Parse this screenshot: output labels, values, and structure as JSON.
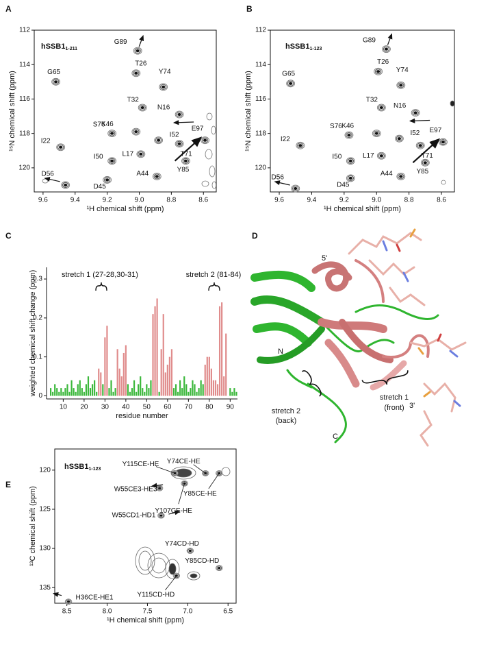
{
  "chart_data": [
    {
      "type": "spectrum",
      "panel": "A",
      "title": "hSSB1",
      "subscript": "1-211",
      "x_label": "¹H chemical shift (ppm)",
      "y_label": "¹⁵N chemical shift (ppm)",
      "xlim": [
        9.655,
        8.52
      ],
      "ylim": [
        112,
        121.4
      ],
      "xticks": [
        9.6,
        9.4,
        9.2,
        {
          "value": 9,
          "label": "9.0"
        },
        8.8,
        8.6
      ],
      "yticks": [
        112,
        114,
        116,
        118,
        120
      ],
      "peaks": {
        "labels": [
          "G89",
          "T26",
          "G65",
          "Y74",
          "T32",
          "N16",
          "K46",
          "S76",
          "I52",
          "E97",
          "T71",
          "I22",
          "I50",
          "L17",
          "A44",
          "Y85",
          "D45",
          "D56"
        ],
        "x": [
          9.01,
          9.02,
          9.52,
          8.85,
          8.98,
          8.75,
          9.02,
          9.17,
          8.88,
          8.59,
          8.75,
          9.49,
          9.17,
          8.99,
          8.89,
          8.71,
          9.2,
          9.46
        ],
        "values": [
          113.2,
          114.5,
          115.0,
          115.3,
          116.5,
          116.9,
          117.9,
          118.0,
          118.4,
          118.4,
          118.6,
          118.8,
          119.6,
          119.2,
          120.5,
          119.6,
          120.7,
          121.0
        ]
      }
    },
    {
      "type": "spectrum",
      "panel": "B",
      "title": "hSSB1",
      "subscript": "1-123",
      "x_label": "¹H chemical shift (ppm)",
      "y_label": "¹⁵N chemical shift (ppm)",
      "xlim": [
        9.655,
        8.52
      ],
      "ylim": [
        112,
        121.4
      ],
      "xticks": [
        9.6,
        9.4,
        9.2,
        {
          "value": 9,
          "label": "9.0"
        },
        8.8,
        8.6
      ],
      "yticks": [
        112,
        114,
        116,
        118,
        120
      ],
      "peaks": {
        "labels": [
          "G89",
          "T26",
          "G65",
          "Y74",
          "T32",
          "N16",
          "K46",
          "S76",
          "I52",
          "E97",
          "T71",
          "I22",
          "I50",
          "L17",
          "A44",
          "Y85",
          "D45",
          "D56"
        ],
        "x": [
          8.94,
          8.99,
          9.53,
          8.85,
          8.97,
          8.76,
          9.0,
          9.17,
          8.86,
          8.59,
          8.73,
          9.47,
          9.16,
          8.97,
          8.85,
          8.7,
          9.16,
          9.5
        ],
        "values": [
          113.1,
          114.4,
          115.1,
          115.2,
          116.5,
          116.8,
          118.0,
          118.1,
          118.3,
          118.5,
          118.7,
          118.7,
          119.6,
          119.3,
          120.5,
          119.7,
          120.6,
          121.2
        ]
      }
    },
    {
      "type": "bar",
      "panel": "C",
      "x_label": "residue number",
      "y_label": "weighted chemical shift change (ppm)",
      "xlim": [
        2,
        93.5
      ],
      "ylim": [
        -0.008,
        0.33
      ],
      "xticks": [
        10,
        20,
        30,
        40,
        50,
        60,
        70,
        80,
        90
      ],
      "yticks": [
        0,
        0.1,
        0.2,
        0.3
      ],
      "annotations": [
        "stretch 1 (27-28,30-31)",
        "stretch 2 (81-84)"
      ],
      "series": [
        {
          "color": "#3cb83c",
          "x": [
            4,
            5,
            6,
            7,
            8,
            9,
            10,
            11,
            12,
            13,
            14,
            15,
            16,
            17,
            18,
            19,
            20,
            21,
            22,
            23,
            24,
            25,
            26,
            29,
            32,
            33,
            34,
            35,
            41,
            42,
            43,
            44,
            45,
            46,
            47,
            48,
            49,
            50,
            51,
            52,
            56,
            63,
            64,
            65,
            66,
            67,
            68,
            69,
            70,
            71,
            72,
            73,
            74,
            75,
            76,
            77,
            90,
            91,
            92,
            93
          ],
          "values": [
            0.02,
            0.01,
            0.03,
            0.02,
            0.01,
            0.02,
            0.01,
            0.02,
            0.03,
            0.01,
            0.04,
            0.02,
            0.01,
            0.03,
            0.04,
            0.02,
            0.01,
            0.03,
            0.05,
            0.02,
            0.03,
            0.04,
            0.01,
            0.03,
            0.02,
            0.04,
            0.01,
            0.02,
            0.03,
            0.01,
            0.02,
            0.04,
            0.01,
            0.03,
            0.05,
            0.02,
            0.01,
            0.03,
            0.02,
            0.04,
            0.01,
            0.02,
            0.03,
            0.01,
            0.04,
            0.02,
            0.05,
            0.03,
            0.01,
            0.02,
            0.04,
            0.03,
            0.01,
            0.02,
            0.04,
            0.03,
            0.02,
            0.01,
            0.02,
            0.01
          ]
        },
        {
          "color": "#e08c8c",
          "x": [
            27,
            28,
            30,
            31,
            36,
            37,
            38,
            39,
            40,
            53,
            54,
            55,
            57,
            58,
            59,
            60,
            61,
            62,
            78,
            79,
            80,
            81,
            82,
            83,
            84,
            85,
            86,
            87,
            88
          ],
          "values": [
            0.07,
            0.06,
            0.15,
            0.18,
            0.12,
            0.07,
            0.05,
            0.11,
            0.13,
            0.21,
            0.23,
            0.25,
            0.12,
            0.21,
            0.06,
            0.08,
            0.1,
            0.12,
            0.08,
            0.1,
            0.1,
            0.07,
            0.04,
            0.04,
            0.03,
            0.23,
            0.24,
            0.05,
            0.16
          ]
        }
      ]
    },
    {
      "type": "spectrum",
      "panel": "E",
      "title": "hSSB1",
      "subscript": "1-123",
      "x_label": "¹H chemical shift (ppm)",
      "y_label": "¹³C chemical shift (ppm)",
      "xlim": [
        8.65,
        6.4
      ],
      "ylim": [
        117.3,
        137
      ],
      "xticks": [
        8.5,
        {
          "value": 8,
          "label": "8.0"
        },
        7.5,
        {
          "value": 7,
          "label": "7.0"
        },
        6.5
      ],
      "yticks": [
        120,
        125,
        130,
        135
      ],
      "peaks": {
        "labels": [
          "Y115CE-HE",
          "Y74CE-HE",
          "W55CE3-HE3",
          "Y85CE-HE",
          "Y107CE-HE",
          "W55CD1-HD1",
          "Y74CD-HD",
          "Y85CD-HD",
          "Y115CD-HD",
          "H36CE-HE1"
        ],
        "x": [
          7.16,
          6.78,
          7.35,
          6.61,
          7.04,
          7.33,
          6.97,
          6.61,
          7.14,
          8.48
        ],
        "values": [
          120.4,
          120.4,
          122.3,
          120.4,
          121.7,
          125.8,
          130.3,
          132.5,
          133.5,
          136.8
        ]
      }
    }
  ],
  "structure": {
    "panel": "D",
    "labels": [
      "5'",
      "3'",
      "N",
      "C",
      "stretch 2",
      "(back)",
      "stretch 1",
      "(front)"
    ]
  }
}
